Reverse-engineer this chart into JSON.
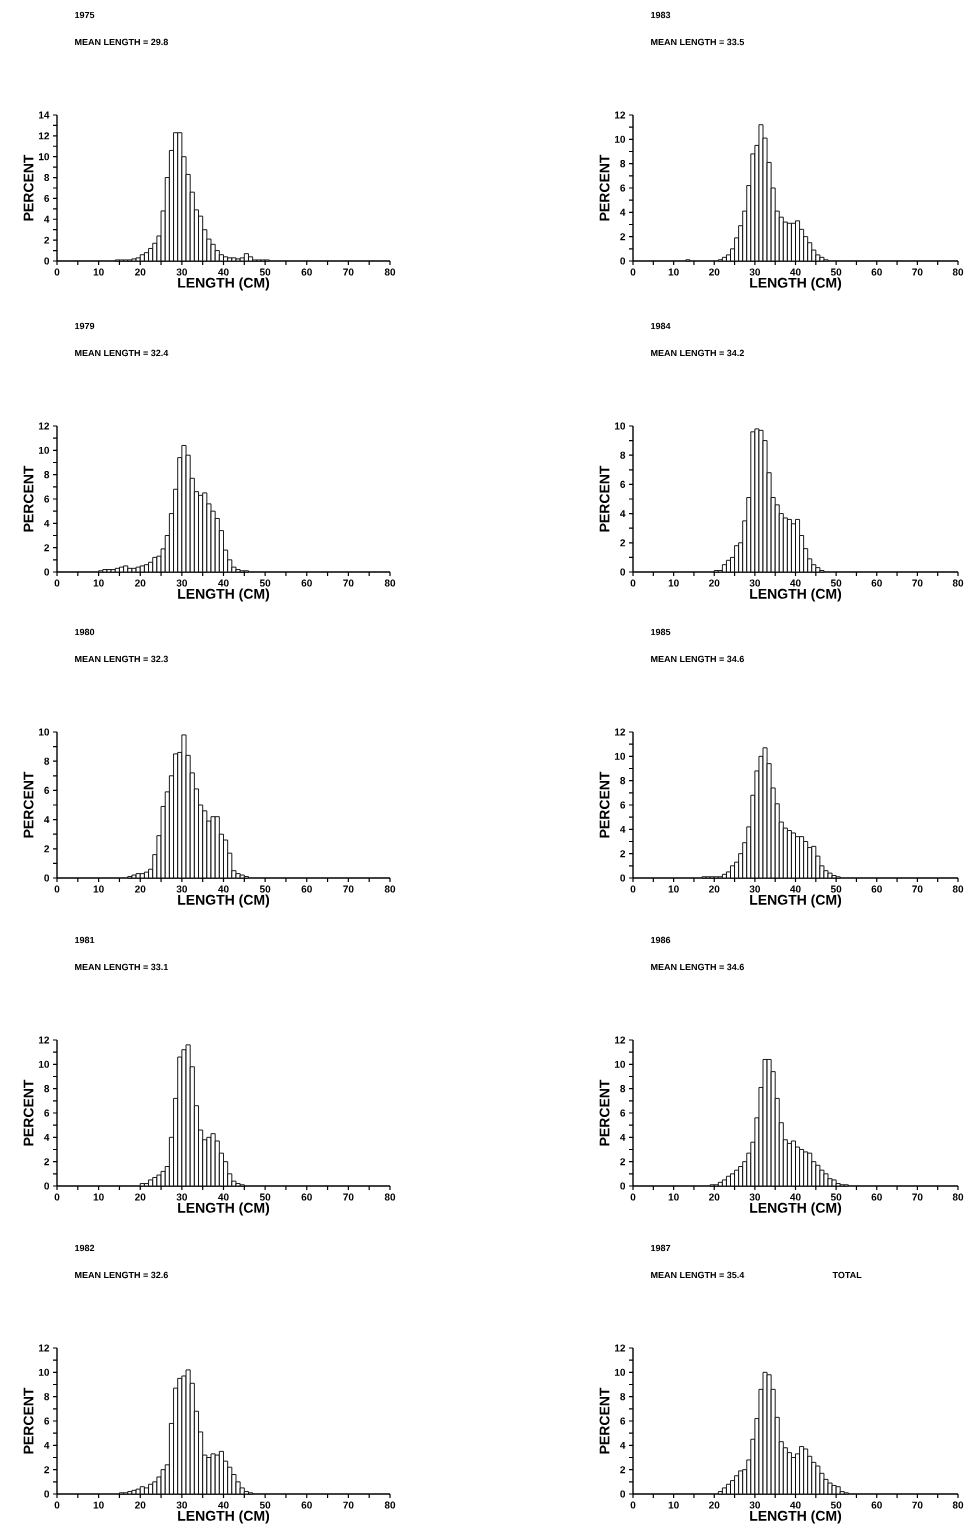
{
  "chart_data": [
    {
      "type": "histogram",
      "title": "1975",
      "subtitle": "MEAN LENGTH = 29.8",
      "xlabel": "LENGTH (CM)",
      "ylabel": "PERCENT",
      "color": "#000000",
      "bins": [
        10,
        11,
        12,
        13,
        14,
        15,
        16,
        17,
        18,
        19,
        20,
        21,
        22,
        23,
        24,
        25,
        26,
        27,
        28,
        29,
        30,
        31,
        32,
        33,
        34,
        35,
        36,
        37,
        38,
        39,
        40,
        41,
        42,
        43,
        44,
        45,
        46,
        47,
        48,
        49,
        50,
        51,
        52,
        53,
        54,
        55,
        56
      ],
      "values": [
        0,
        0,
        0,
        0,
        0.1,
        0.1,
        0.1,
        0.1,
        0.2,
        0.3,
        0.6,
        0.8,
        1.2,
        1.7,
        2.4,
        4.8,
        8.0,
        10.6,
        12.3,
        12.3,
        10.0,
        8.3,
        6.6,
        4.9,
        4.3,
        3.0,
        2.1,
        1.6,
        1.0,
        0.6,
        0.4,
        0.3,
        0.3,
        0.2,
        0.3,
        0.7,
        0.4,
        0.1,
        0.1,
        0.1,
        0.1,
        0,
        0,
        0,
        0,
        0
      ],
      "xlim": [
        0,
        80
      ],
      "xticks": [
        0,
        {
          "value": 5,
          "label": null
        },
        10,
        {
          "value": 15,
          "label": null
        },
        20,
        {
          "value": 25,
          "label": null
        },
        30,
        {
          "value": 35,
          "label": null
        },
        40,
        {
          "value": 45,
          "label": null
        },
        50,
        {
          "value": 55,
          "label": null
        },
        60,
        {
          "value": 65,
          "label": null
        },
        70,
        {
          "value": 75,
          "label": null
        },
        80
      ],
      "ylim": [
        0,
        14
      ],
      "yticks": [
        0,
        {
          "value": 1,
          "label": null
        },
        2,
        {
          "value": 3,
          "label": null
        },
        4,
        {
          "value": 5,
          "label": null
        },
        6,
        {
          "value": 7,
          "label": null
        },
        8,
        {
          "value": 9,
          "label": null
        },
        10,
        {
          "value": 11,
          "label": null
        },
        12,
        {
          "value": 13,
          "label": null
        },
        14
      ]
    },
    {
      "type": "histogram",
      "title": "1983",
      "subtitle": "MEAN LENGTH = 33.5",
      "xlabel": "LENGTH (CM)",
      "ylabel": "PERCENT",
      "color": "#000000",
      "bins": [
        10,
        11,
        12,
        13,
        14,
        15,
        16,
        17,
        18,
        19,
        20,
        21,
        22,
        23,
        24,
        25,
        26,
        27,
        28,
        29,
        30,
        31,
        32,
        33,
        34,
        35,
        36,
        37,
        38,
        39,
        40,
        41,
        42,
        43,
        44,
        45,
        46,
        47,
        48,
        49,
        50,
        51,
        52,
        53,
        54,
        55,
        56
      ],
      "values": [
        0,
        0,
        0,
        0.1,
        0,
        0,
        0,
        0,
        0,
        0,
        0,
        0.1,
        0.3,
        0.5,
        1.0,
        1.9,
        2.9,
        4.1,
        6.2,
        8.8,
        9.5,
        11.2,
        10.1,
        8.1,
        6.0,
        4.1,
        3.6,
        3.2,
        3.1,
        3.1,
        3.3,
        2.6,
        2.0,
        1.5,
        0.9,
        0.5,
        0.3,
        0.1,
        0,
        0,
        0,
        0,
        0,
        0,
        0,
        0
      ],
      "xlim": [
        0,
        80
      ],
      "xticks": [
        0,
        {
          "value": 5,
          "label": null
        },
        10,
        {
          "value": 15,
          "label": null
        },
        20,
        {
          "value": 25,
          "label": null
        },
        30,
        {
          "value": 35,
          "label": null
        },
        40,
        {
          "value": 45,
          "label": null
        },
        50,
        {
          "value": 55,
          "label": null
        },
        60,
        {
          "value": 65,
          "label": null
        },
        70,
        {
          "value": 75,
          "label": null
        },
        80
      ],
      "ylim": [
        0,
        12
      ],
      "yticks": [
        0,
        {
          "value": 1,
          "label": null
        },
        2,
        {
          "value": 3,
          "label": null
        },
        4,
        {
          "value": 5,
          "label": null
        },
        6,
        {
          "value": 7,
          "label": null
        },
        8,
        {
          "value": 9,
          "label": null
        },
        10,
        {
          "value": 11,
          "label": null
        },
        12
      ]
    },
    {
      "type": "histogram",
      "title": "1979",
      "subtitle": "MEAN LENGTH = 32.4",
      "xlabel": "LENGTH (CM)",
      "ylabel": "PERCENT",
      "color": "#000000",
      "bins": [
        10,
        11,
        12,
        13,
        14,
        15,
        16,
        17,
        18,
        19,
        20,
        21,
        22,
        23,
        24,
        25,
        26,
        27,
        28,
        29,
        30,
        31,
        32,
        33,
        34,
        35,
        36,
        37,
        38,
        39,
        40,
        41,
        42,
        43,
        44,
        45,
        46,
        47,
        48,
        49,
        50,
        51,
        52,
        53,
        54,
        55,
        56
      ],
      "values": [
        0.1,
        0.2,
        0.2,
        0.2,
        0.3,
        0.4,
        0.5,
        0.3,
        0.3,
        0.4,
        0.5,
        0.6,
        0.8,
        1.2,
        1.3,
        1.9,
        3.0,
        4.8,
        6.8,
        9.4,
        10.4,
        9.6,
        7.7,
        6.6,
        6.3,
        6.5,
        5.6,
        5.0,
        4.4,
        3.4,
        1.8,
        1.0,
        0.4,
        0.2,
        0.1,
        0.1,
        0,
        0,
        0,
        0,
        0,
        0,
        0,
        0,
        0,
        0
      ],
      "xlim": [
        0,
        80
      ],
      "xticks": [
        0,
        {
          "value": 5,
          "label": null
        },
        10,
        {
          "value": 15,
          "label": null
        },
        20,
        {
          "value": 25,
          "label": null
        },
        30,
        {
          "value": 35,
          "label": null
        },
        40,
        {
          "value": 45,
          "label": null
        },
        50,
        {
          "value": 55,
          "label": null
        },
        60,
        {
          "value": 65,
          "label": null
        },
        70,
        {
          "value": 75,
          "label": null
        },
        80
      ],
      "ylim": [
        0,
        12
      ],
      "yticks": [
        0,
        {
          "value": 1,
          "label": null
        },
        2,
        {
          "value": 3,
          "label": null
        },
        4,
        {
          "value": 5,
          "label": null
        },
        6,
        {
          "value": 7,
          "label": null
        },
        8,
        {
          "value": 9,
          "label": null
        },
        10,
        {
          "value": 11,
          "label": null
        },
        12
      ]
    },
    {
      "type": "histogram",
      "title": "1984",
      "subtitle": "MEAN LENGTH = 34.2",
      "xlabel": "LENGTH (CM)",
      "ylabel": "PERCENT",
      "color": "#000000",
      "bins": [
        10,
        11,
        12,
        13,
        14,
        15,
        16,
        17,
        18,
        19,
        20,
        21,
        22,
        23,
        24,
        25,
        26,
        27,
        28,
        29,
        30,
        31,
        32,
        33,
        34,
        35,
        36,
        37,
        38,
        39,
        40,
        41,
        42,
        43,
        44,
        45,
        46,
        47,
        48,
        49,
        50,
        51,
        52,
        53,
        54,
        55,
        56
      ],
      "values": [
        0,
        0,
        0,
        0,
        0,
        0,
        0,
        0,
        0,
        0,
        0.1,
        0.1,
        0.5,
        0.8,
        1.0,
        1.8,
        2.0,
        3.5,
        5.1,
        9.6,
        9.8,
        9.7,
        9.0,
        6.8,
        5.1,
        4.6,
        4.0,
        3.7,
        3.6,
        3.3,
        3.6,
        2.5,
        1.6,
        0.9,
        0.5,
        0.3,
        0.1,
        0,
        0,
        0,
        0,
        0,
        0,
        0,
        0,
        0
      ],
      "xlim": [
        0,
        80
      ],
      "xticks": [
        0,
        {
          "value": 5,
          "label": null
        },
        10,
        {
          "value": 15,
          "label": null
        },
        20,
        {
          "value": 25,
          "label": null
        },
        30,
        {
          "value": 35,
          "label": null
        },
        40,
        {
          "value": 45,
          "label": null
        },
        50,
        {
          "value": 55,
          "label": null
        },
        60,
        {
          "value": 65,
          "label": null
        },
        70,
        {
          "value": 75,
          "label": null
        },
        80
      ],
      "ylim": [
        0,
        10
      ],
      "yticks": [
        0,
        {
          "value": 1,
          "label": null
        },
        2,
        {
          "value": 3,
          "label": null
        },
        4,
        {
          "value": 5,
          "label": null
        },
        6,
        {
          "value": 7,
          "label": null
        },
        8,
        {
          "value": 9,
          "label": null
        },
        10
      ]
    },
    {
      "type": "histogram",
      "title": "1980",
      "subtitle": "MEAN LENGTH = 32.3",
      "xlabel": "LENGTH (CM)",
      "ylabel": "PERCENT",
      "color": "#000000",
      "bins": [
        10,
        11,
        12,
        13,
        14,
        15,
        16,
        17,
        18,
        19,
        20,
        21,
        22,
        23,
        24,
        25,
        26,
        27,
        28,
        29,
        30,
        31,
        32,
        33,
        34,
        35,
        36,
        37,
        38,
        39,
        40,
        41,
        42,
        43,
        44,
        45,
        46,
        47,
        48,
        49,
        50,
        51,
        52,
        53,
        54,
        55,
        56
      ],
      "values": [
        0,
        0,
        0,
        0,
        0,
        0,
        0,
        0.1,
        0.2,
        0.3,
        0.3,
        0.4,
        0.6,
        1.6,
        2.9,
        4.9,
        5.9,
        7.0,
        8.5,
        8.6,
        9.8,
        8.4,
        7.2,
        6.1,
        5.0,
        4.6,
        3.9,
        4.2,
        4.2,
        3.0,
        2.6,
        1.7,
        0.5,
        0.3,
        0.2,
        0.1,
        0,
        0,
        0,
        0,
        0,
        0,
        0,
        0,
        0,
        0
      ],
      "xlim": [
        0,
        80
      ],
      "xticks": [
        0,
        {
          "value": 5,
          "label": null
        },
        10,
        {
          "value": 15,
          "label": null
        },
        20,
        {
          "value": 25,
          "label": null
        },
        30,
        {
          "value": 35,
          "label": null
        },
        40,
        {
          "value": 45,
          "label": null
        },
        50,
        {
          "value": 55,
          "label": null
        },
        60,
        {
          "value": 65,
          "label": null
        },
        70,
        {
          "value": 75,
          "label": null
        },
        80
      ],
      "ylim": [
        0,
        10
      ],
      "yticks": [
        0,
        {
          "value": 1,
          "label": null
        },
        2,
        {
          "value": 3,
          "label": null
        },
        4,
        {
          "value": 5,
          "label": null
        },
        6,
        {
          "value": 7,
          "label": null
        },
        8,
        {
          "value": 9,
          "label": null
        },
        10
      ]
    },
    {
      "type": "histogram",
      "title": "1985",
      "subtitle": "MEAN LENGTH = 34.6",
      "xlabel": "LENGTH (CM)",
      "ylabel": "PERCENT",
      "color": "#000000",
      "bins": [
        10,
        11,
        12,
        13,
        14,
        15,
        16,
        17,
        18,
        19,
        20,
        21,
        22,
        23,
        24,
        25,
        26,
        27,
        28,
        29,
        30,
        31,
        32,
        33,
        34,
        35,
        36,
        37,
        38,
        39,
        40,
        41,
        42,
        43,
        44,
        45,
        46,
        47,
        48,
        49,
        50,
        51,
        52,
        53,
        54,
        55,
        56
      ],
      "values": [
        0,
        0,
        0,
        0,
        0,
        0,
        0,
        0.1,
        0.1,
        0.1,
        0.1,
        0.1,
        0.3,
        0.5,
        1.0,
        1.3,
        2.0,
        2.9,
        4.2,
        6.8,
        8.8,
        10.0,
        10.7,
        9.4,
        7.4,
        6.1,
        4.6,
        4.1,
        3.9,
        3.7,
        3.4,
        3.4,
        3.0,
        2.5,
        2.6,
        1.8,
        1.0,
        0.6,
        0.4,
        0.2,
        0.1,
        0,
        0,
        0,
        0,
        0
      ],
      "xlim": [
        0,
        80
      ],
      "xticks": [
        0,
        {
          "value": 5,
          "label": null
        },
        10,
        {
          "value": 15,
          "label": null
        },
        20,
        {
          "value": 25,
          "label": null
        },
        30,
        {
          "value": 35,
          "label": null
        },
        40,
        {
          "value": 45,
          "label": null
        },
        50,
        {
          "value": 55,
          "label": null
        },
        60,
        {
          "value": 65,
          "label": null
        },
        70,
        {
          "value": 75,
          "label": null
        },
        80
      ],
      "ylim": [
        0,
        12
      ],
      "yticks": [
        0,
        {
          "value": 1,
          "label": null
        },
        2,
        {
          "value": 3,
          "label": null
        },
        4,
        {
          "value": 5,
          "label": null
        },
        6,
        {
          "value": 7,
          "label": null
        },
        8,
        {
          "value": 9,
          "label": null
        },
        10,
        {
          "value": 11,
          "label": null
        },
        12
      ]
    },
    {
      "type": "histogram",
      "title": "1981",
      "subtitle": "MEAN LENGTH = 33.1",
      "xlabel": "LENGTH (CM)",
      "ylabel": "PERCENT",
      "color": "#000000",
      "bins": [
        10,
        11,
        12,
        13,
        14,
        15,
        16,
        17,
        18,
        19,
        20,
        21,
        22,
        23,
        24,
        25,
        26,
        27,
        28,
        29,
        30,
        31,
        32,
        33,
        34,
        35,
        36,
        37,
        38,
        39,
        40,
        41,
        42,
        43,
        44,
        45,
        46,
        47,
        48,
        49,
        50,
        51,
        52,
        53,
        54,
        55,
        56
      ],
      "values": [
        0,
        0,
        0,
        0,
        0,
        0,
        0,
        0,
        0,
        0,
        0.2,
        0.2,
        0.5,
        0.7,
        0.9,
        1.2,
        1.6,
        4.0,
        7.2,
        10.6,
        11.2,
        11.6,
        9.8,
        6.6,
        4.6,
        3.8,
        4.0,
        4.3,
        3.7,
        2.7,
        2.0,
        1.0,
        0.4,
        0.2,
        0.1,
        0,
        0,
        0,
        0,
        0,
        0,
        0,
        0,
        0,
        0,
        0
      ],
      "xlim": [
        0,
        80
      ],
      "xticks": [
        0,
        {
          "value": 5,
          "label": null
        },
        10,
        {
          "value": 15,
          "label": null
        },
        20,
        {
          "value": 25,
          "label": null
        },
        30,
        {
          "value": 35,
          "label": null
        },
        40,
        {
          "value": 45,
          "label": null
        },
        50,
        {
          "value": 55,
          "label": null
        },
        60,
        {
          "value": 65,
          "label": null
        },
        70,
        {
          "value": 75,
          "label": null
        },
        80
      ],
      "ylim": [
        0,
        12
      ],
      "yticks": [
        0,
        {
          "value": 1,
          "label": null
        },
        2,
        {
          "value": 3,
          "label": null
        },
        4,
        {
          "value": 5,
          "label": null
        },
        6,
        {
          "value": 7,
          "label": null
        },
        8,
        {
          "value": 9,
          "label": null
        },
        10,
        {
          "value": 11,
          "label": null
        },
        12
      ]
    },
    {
      "type": "histogram",
      "title": "1986",
      "subtitle": "MEAN LENGTH = 34.6",
      "xlabel": "LENGTH (CM)",
      "ylabel": "PERCENT",
      "color": "#000000",
      "bins": [
        10,
        11,
        12,
        13,
        14,
        15,
        16,
        17,
        18,
        19,
        20,
        21,
        22,
        23,
        24,
        25,
        26,
        27,
        28,
        29,
        30,
        31,
        32,
        33,
        34,
        35,
        36,
        37,
        38,
        39,
        40,
        41,
        42,
        43,
        44,
        45,
        46,
        47,
        48,
        49,
        50,
        51,
        52,
        53,
        54,
        55,
        56
      ],
      "values": [
        0,
        0,
        0,
        0,
        0,
        0,
        0,
        0,
        0,
        0.1,
        0.1,
        0.3,
        0.5,
        0.8,
        1.0,
        1.3,
        1.6,
        2.0,
        2.7,
        3.6,
        5.6,
        8.1,
        10.4,
        10.4,
        9.4,
        7.2,
        5.2,
        3.8,
        3.5,
        3.7,
        3.2,
        3.0,
        2.8,
        2.7,
        2.0,
        1.7,
        1.3,
        1.0,
        0.6,
        0.5,
        0.2,
        0.1,
        0.1,
        0,
        0,
        0
      ],
      "xlim": [
        0,
        80
      ],
      "xticks": [
        0,
        {
          "value": 5,
          "label": null
        },
        10,
        {
          "value": 15,
          "label": null
        },
        20,
        {
          "value": 25,
          "label": null
        },
        30,
        {
          "value": 35,
          "label": null
        },
        40,
        {
          "value": 45,
          "label": null
        },
        50,
        {
          "value": 55,
          "label": null
        },
        60,
        {
          "value": 65,
          "label": null
        },
        70,
        {
          "value": 75,
          "label": null
        },
        80
      ],
      "ylim": [
        0,
        12
      ],
      "yticks": [
        0,
        {
          "value": 1,
          "label": null
        },
        2,
        {
          "value": 3,
          "label": null
        },
        4,
        {
          "value": 5,
          "label": null
        },
        6,
        {
          "value": 7,
          "label": null
        },
        8,
        {
          "value": 9,
          "label": null
        },
        10,
        {
          "value": 11,
          "label": null
        },
        12
      ]
    },
    {
      "type": "histogram",
      "title": "1982",
      "subtitle": "MEAN LENGTH = 32.6",
      "xlabel": "LENGTH (CM)",
      "ylabel": "PERCENT",
      "color": "#000000",
      "bins": [
        10,
        11,
        12,
        13,
        14,
        15,
        16,
        17,
        18,
        19,
        20,
        21,
        22,
        23,
        24,
        25,
        26,
        27,
        28,
        29,
        30,
        31,
        32,
        33,
        34,
        35,
        36,
        37,
        38,
        39,
        40,
        41,
        42,
        43,
        44,
        45,
        46,
        47,
        48,
        49,
        50,
        51,
        52,
        53,
        54,
        55,
        56
      ],
      "values": [
        0,
        0,
        0,
        0,
        0,
        0.1,
        0.1,
        0.2,
        0.3,
        0.4,
        0.6,
        0.5,
        0.8,
        1.0,
        1.4,
        2.0,
        2.4,
        5.8,
        8.7,
        9.5,
        9.7,
        10.2,
        9.1,
        6.8,
        5.1,
        3.2,
        3.0,
        3.3,
        3.2,
        3.5,
        2.7,
        2.2,
        1.6,
        1.0,
        0.5,
        0.2,
        0.1,
        0,
        0,
        0,
        0,
        0,
        0,
        0,
        0,
        0
      ],
      "xlim": [
        0,
        80
      ],
      "xticks": [
        0,
        {
          "value": 5,
          "label": null
        },
        10,
        {
          "value": 15,
          "label": null
        },
        20,
        {
          "value": 25,
          "label": null
        },
        30,
        {
          "value": 35,
          "label": null
        },
        40,
        {
          "value": 45,
          "label": null
        },
        50,
        {
          "value": 55,
          "label": null
        },
        60,
        {
          "value": 65,
          "label": null
        },
        70,
        {
          "value": 75,
          "label": null
        },
        80
      ],
      "ylim": [
        0,
        12
      ],
      "yticks": [
        0,
        {
          "value": 1,
          "label": null
        },
        2,
        {
          "value": 3,
          "label": null
        },
        4,
        {
          "value": 5,
          "label": null
        },
        6,
        {
          "value": 7,
          "label": null
        },
        8,
        {
          "value": 9,
          "label": null
        },
        10,
        {
          "value": 11,
          "label": null
        },
        12
      ]
    },
    {
      "type": "histogram",
      "title": "1987",
      "subtitle": "MEAN LENGTH = 35.4",
      "annotations": [
        "TOTAL"
      ],
      "xlabel": "LENGTH (CM)",
      "ylabel": "PERCENT",
      "color": "#000000",
      "bins": [
        10,
        11,
        12,
        13,
        14,
        15,
        16,
        17,
        18,
        19,
        20,
        21,
        22,
        23,
        24,
        25,
        26,
        27,
        28,
        29,
        30,
        31,
        32,
        33,
        34,
        35,
        36,
        37,
        38,
        39,
        40,
        41,
        42,
        43,
        44,
        45,
        46,
        47,
        48,
        49,
        50,
        51,
        52,
        53,
        54,
        55,
        56
      ],
      "values": [
        0,
        0,
        0,
        0,
        0,
        0,
        0,
        0,
        0,
        0,
        0,
        0.2,
        0.5,
        0.8,
        1.1,
        1.5,
        1.9,
        2.0,
        2.8,
        4.5,
        6.2,
        8.6,
        10.0,
        9.8,
        8.6,
        6.3,
        4.3,
        3.8,
        3.4,
        3.0,
        3.3,
        3.9,
        3.7,
        3.1,
        2.6,
        2.3,
        1.7,
        1.2,
        0.9,
        0.7,
        0.6,
        0.2,
        0.1,
        0,
        0,
        0
      ],
      "xlim": [
        0,
        80
      ],
      "xticks": [
        0,
        {
          "value": 5,
          "label": null
        },
        10,
        {
          "value": 15,
          "label": null
        },
        20,
        {
          "value": 25,
          "label": null
        },
        30,
        {
          "value": 35,
          "label": null
        },
        40,
        {
          "value": 45,
          "label": null
        },
        50,
        {
          "value": 55,
          "label": null
        },
        60,
        {
          "value": 65,
          "label": null
        },
        70,
        {
          "value": 75,
          "label": null
        },
        80
      ],
      "ylim": [
        0,
        12
      ],
      "yticks": [
        0,
        {
          "value": 1,
          "label": null
        },
        2,
        {
          "value": 3,
          "label": null
        },
        4,
        {
          "value": 5,
          "label": null
        },
        6,
        {
          "value": 7,
          "label": null
        },
        8,
        {
          "value": 9,
          "label": null
        },
        10,
        {
          "value": 11,
          "label": null
        },
        12
      ]
    }
  ]
}
